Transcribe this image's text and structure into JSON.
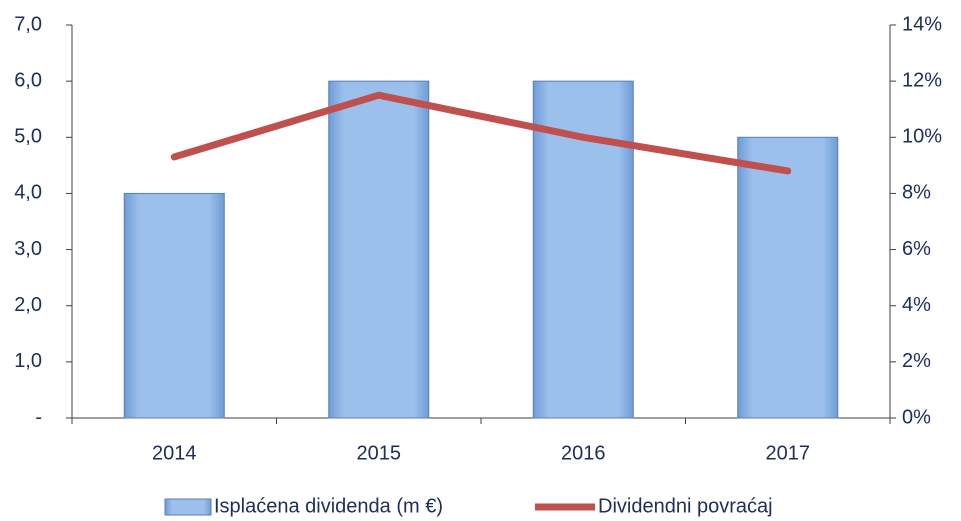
{
  "chart_data": {
    "type": "bar",
    "categories": [
      "2014",
      "2015",
      "2016",
      "2017"
    ],
    "series": [
      {
        "name": "Isplaćena dividenda (m €)",
        "color": "#8db4e2",
        "type": "bar",
        "values": [
          4.0,
          6.0,
          6.0,
          5.0
        ]
      },
      {
        "name": "Dividendni povraćaj",
        "color": "#c0504d",
        "type": "line",
        "axis": "y2",
        "values": [
          9.3,
          11.5,
          10.0,
          8.8
        ]
      }
    ],
    "ylim": [
      0,
      7
    ],
    "yticks": [
      {
        "value": 0,
        "label": "-"
      },
      {
        "value": 1,
        "label": "1,0"
      },
      {
        "value": 2,
        "label": "2,0"
      },
      {
        "value": 3,
        "label": "3,0"
      },
      {
        "value": 4,
        "label": "4,0"
      },
      {
        "value": 5,
        "label": "5,0"
      },
      {
        "value": 6,
        "label": "6,0"
      },
      {
        "value": 7,
        "label": "7,0"
      }
    ],
    "y2lim": [
      0,
      14
    ],
    "y2ticks": [
      {
        "value": 0,
        "label": "0%"
      },
      {
        "value": 2,
        "label": "2%"
      },
      {
        "value": 4,
        "label": "4%"
      },
      {
        "value": 6,
        "label": "6%"
      },
      {
        "value": 8,
        "label": "8%"
      },
      {
        "value": 10,
        "label": "10%"
      },
      {
        "value": 12,
        "label": "12%"
      },
      {
        "value": 14,
        "label": "14%"
      }
    ],
    "legend": "bottom"
  }
}
